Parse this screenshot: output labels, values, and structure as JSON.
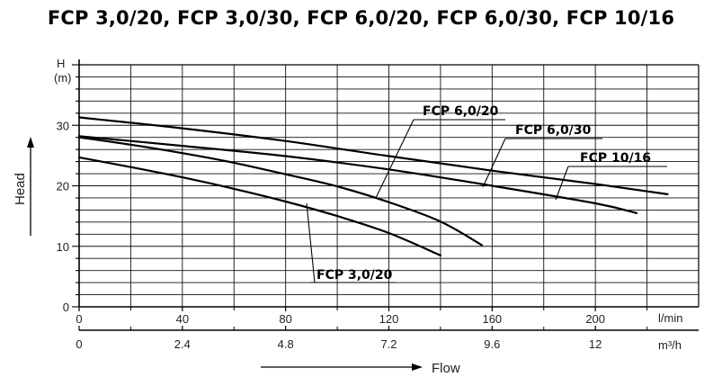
{
  "title": "FCP 3,0/20, FCP 3,0/30, FCP 6,0/20, FCP 6,0/30, FCP 10/16",
  "axes": {
    "y_name": "Head",
    "y_unit_letter": "H",
    "y_unit": "(m)",
    "x_name": "Flow",
    "x_unit_primary": "l/min",
    "x_unit_secondary": "m³/h"
  },
  "chart_data": {
    "type": "line",
    "title": "FCP 3,0/20, FCP 3,0/30, FCP 6,0/20, FCP 6,0/30, FCP 10/16",
    "xlabel": "Flow",
    "ylabel": "Head",
    "x_unit": "l/min",
    "x_unit_secondary": "m³/h",
    "y_unit": "m",
    "xlim": [
      0,
      240
    ],
    "ylim": [
      0,
      40
    ],
    "x_ticks": [
      0,
      40,
      80,
      120,
      160,
      200
    ],
    "x_ticks_secondary": [
      0,
      2.4,
      4.8,
      7.2,
      9.6,
      12
    ],
    "y_ticks": [
      0,
      10,
      20,
      30
    ],
    "grid": true,
    "series": [
      {
        "name": "FCP 3,0/20",
        "x": [
          0,
          20,
          40,
          60,
          80,
          100,
          120,
          140
        ],
        "y": [
          24.7,
          23.1,
          21.4,
          19.5,
          17.4,
          15.0,
          12.2,
          8.5
        ]
      },
      {
        "name": "FCP 6,0/20",
        "x": [
          0,
          20,
          40,
          60,
          80,
          100,
          120,
          140,
          156
        ],
        "y": [
          28.0,
          26.8,
          25.4,
          23.8,
          21.9,
          19.9,
          17.3,
          14.1,
          10.2
        ]
      },
      {
        "name": "FCP 6,0/30",
        "x": [
          0,
          40,
          80,
          120,
          160,
          200,
          216
        ],
        "y": [
          28.2,
          26.6,
          24.9,
          22.7,
          20.0,
          17.1,
          15.5
        ]
      },
      {
        "name": "FCP 10/16",
        "x": [
          0,
          40,
          80,
          120,
          160,
          200,
          228
        ],
        "y": [
          31.3,
          29.5,
          27.4,
          24.9,
          22.5,
          20.3,
          18.6
        ]
      }
    ],
    "callouts": [
      {
        "text": "FCP 6,0/20",
        "series": "FCP 6,0/20"
      },
      {
        "text": "FCP 6,0/30",
        "series": "FCP 6,0/30"
      },
      {
        "text": "FCP 10/16",
        "series": "FCP 10/16"
      },
      {
        "text": "FCP 3,0/20",
        "series": "FCP 3,0/20"
      }
    ]
  }
}
